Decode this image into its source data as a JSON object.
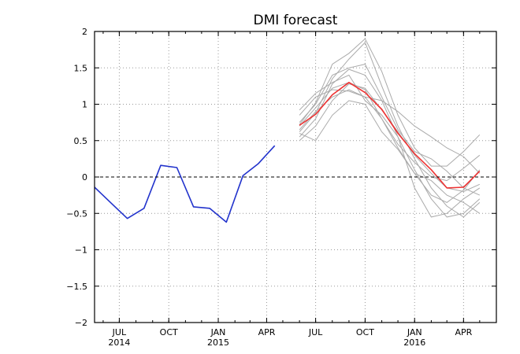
{
  "chart_data": {
    "type": "line",
    "title": "DMI forecast",
    "xlabel": "",
    "ylabel": "",
    "x_range": [
      "2014-05-16",
      "2016-06-01"
    ],
    "ylim": [
      -2,
      2
    ],
    "y_ticks": [
      -2,
      -1.5,
      -1,
      -0.5,
      0,
      0.5,
      1,
      1.5,
      2
    ],
    "y_tick_labels": [
      "−2",
      "−1.5",
      "−1",
      "−0.5",
      "0",
      "0.5",
      "1",
      "1.5",
      "2"
    ],
    "x_ticks": [
      {
        "date": "2014-07-01",
        "label": "JUL",
        "year": "2014"
      },
      {
        "date": "2014-10-01",
        "label": "OCT",
        "year": ""
      },
      {
        "date": "2015-01-01",
        "label": "JAN",
        "year": "2015"
      },
      {
        "date": "2015-04-01",
        "label": "APR",
        "year": ""
      },
      {
        "date": "2015-07-01",
        "label": "JUL",
        "year": ""
      },
      {
        "date": "2015-10-01",
        "label": "OCT",
        "year": ""
      },
      {
        "date": "2016-01-01",
        "label": "JAN",
        "year": "2016"
      },
      {
        "date": "2016-04-01",
        "label": "APR",
        "year": ""
      }
    ],
    "grid": true,
    "zero_line": "dashed",
    "series": [
      {
        "color": "#2233cc",
        "points": [
          [
            "2014-05-16",
            -0.14
          ],
          [
            "2014-06-16",
            -0.36
          ],
          [
            "2014-07-16",
            -0.57
          ],
          [
            "2014-08-16",
            -0.43
          ],
          [
            "2014-09-16",
            0.16
          ],
          [
            "2014-10-16",
            0.13
          ],
          [
            "2014-11-16",
            -0.41
          ],
          [
            "2014-12-16",
            -0.43
          ],
          [
            "2015-01-16",
            -0.62
          ],
          [
            "2015-02-16",
            0.02
          ],
          [
            "2015-03-16",
            0.18
          ],
          [
            "2015-04-16",
            0.43
          ]
        ]
      },
      {
        "color": "#ee3333",
        "points": [
          [
            "2015-06-01",
            0.71
          ],
          [
            "2015-07-01",
            0.86
          ],
          [
            "2015-08-01",
            1.13
          ],
          [
            "2015-09-01",
            1.3
          ],
          [
            "2015-10-01",
            1.16
          ],
          [
            "2015-11-01",
            0.93
          ],
          [
            "2015-12-01",
            0.6
          ],
          [
            "2016-01-01",
            0.32
          ],
          [
            "2016-02-01",
            0.1
          ],
          [
            "2016-03-01",
            -0.15
          ],
          [
            "2016-04-01",
            -0.14
          ],
          [
            "2016-05-01",
            0.08
          ]
        ]
      }
    ],
    "ensemble_dates": [
      "2015-06-01",
      "2015-07-01",
      "2015-08-01",
      "2015-09-01",
      "2015-10-01",
      "2015-11-01",
      "2015-12-01",
      "2016-01-01",
      "2016-02-01",
      "2016-03-01",
      "2016-04-01",
      "2016-05-01"
    ],
    "ensemble_color": "#aaaaaa",
    "ensemble": [
      [
        0.62,
        0.88,
        1.35,
        1.62,
        1.85,
        1.25,
        0.7,
        0.25,
        -0.15,
        -0.4,
        -0.55,
        -0.35
      ],
      [
        0.55,
        0.8,
        1.28,
        1.48,
        1.4,
        1.05,
        0.55,
        0.1,
        -0.3,
        -0.55,
        -0.5,
        -0.3
      ],
      [
        0.72,
        1.02,
        1.55,
        1.7,
        1.9,
        1.45,
        0.85,
        0.4,
        0.15,
        0.15,
        0.35,
        0.58
      ],
      [
        0.7,
        0.95,
        1.22,
        1.3,
        1.2,
        0.8,
        0.45,
        0.2,
        0.0,
        -0.05,
        0.12,
        0.3
      ],
      [
        0.6,
        0.5,
        0.85,
        1.05,
        1.0,
        0.62,
        0.38,
        0.05,
        -0.05,
        -0.25,
        -0.35,
        -0.5
      ],
      [
        0.5,
        0.7,
        1.05,
        1.28,
        1.22,
        0.92,
        0.62,
        0.3,
        0.05,
        -0.15,
        -0.2,
        -0.1
      ],
      [
        0.85,
        1.1,
        1.2,
        1.18,
        1.1,
        1.05,
        0.9,
        0.7,
        0.55,
        0.4,
        0.28,
        0.05
      ],
      [
        0.92,
        1.15,
        1.3,
        1.4,
        1.05,
        0.85,
        0.55,
        -0.15,
        -0.55,
        -0.5,
        -0.3,
        -0.15
      ],
      [
        0.65,
        0.9,
        1.1,
        1.2,
        1.1,
        0.8,
        0.4,
        0.05,
        -0.25,
        -0.35,
        -0.18,
        0.1
      ],
      [
        0.75,
        1.0,
        1.4,
        1.5,
        1.55,
        1.1,
        0.65,
        0.35,
        0.25,
        0.08,
        -0.15,
        -0.25
      ]
    ]
  }
}
